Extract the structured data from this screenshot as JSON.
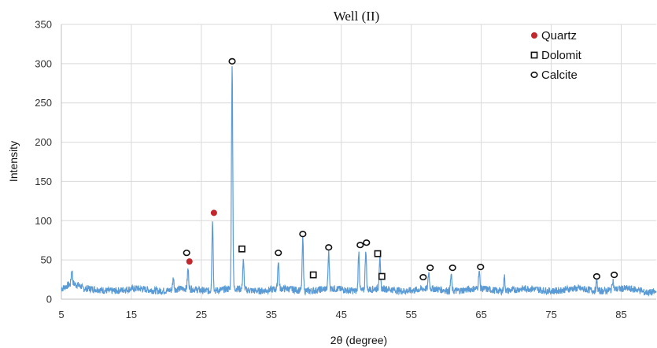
{
  "chart_data": {
    "type": "line",
    "title": "Well (II)",
    "xlabel": "2θ (degree)",
    "ylabel": "Intensity",
    "xlim": [
      5,
      90
    ],
    "ylim": [
      0,
      350
    ],
    "xticks": [
      5,
      15,
      25,
      35,
      45,
      55,
      65,
      75,
      85
    ],
    "yticks": [
      0,
      50,
      100,
      150,
      200,
      250,
      300,
      350
    ],
    "grid": true,
    "legend_position": "top-right",
    "line_color": "#5b9bd5",
    "baseline": 12,
    "peaks": [
      {
        "x": 6.5,
        "y": 30
      },
      {
        "x": 21.0,
        "y": 27
      },
      {
        "x": 23.1,
        "y": 37
      },
      {
        "x": 26.6,
        "y": 102
      },
      {
        "x": 29.4,
        "y": 298
      },
      {
        "x": 31.0,
        "y": 48
      },
      {
        "x": 36.0,
        "y": 48
      },
      {
        "x": 39.5,
        "y": 78
      },
      {
        "x": 43.2,
        "y": 58
      },
      {
        "x": 47.5,
        "y": 62
      },
      {
        "x": 48.5,
        "y": 64
      },
      {
        "x": 50.5,
        "y": 50
      },
      {
        "x": 57.5,
        "y": 33
      },
      {
        "x": 60.7,
        "y": 33
      },
      {
        "x": 64.7,
        "y": 35
      },
      {
        "x": 68.3,
        "y": 30
      },
      {
        "x": 81.5,
        "y": 24
      },
      {
        "x": 83.8,
        "y": 25
      }
    ],
    "series": [
      {
        "name": "Quartz",
        "marker": "filled-circle",
        "color": "#c0282d",
        "points": [
          {
            "x": 23.3,
            "y": 48
          },
          {
            "x": 26.8,
            "y": 110
          }
        ]
      },
      {
        "name": "Dolomit",
        "marker": "open-square",
        "color": "#111111",
        "points": [
          {
            "x": 30.8,
            "y": 64
          },
          {
            "x": 41.0,
            "y": 31
          },
          {
            "x": 50.2,
            "y": 58
          },
          {
            "x": 50.8,
            "y": 29
          }
        ]
      },
      {
        "name": "Calcite",
        "marker": "open-circle",
        "color": "#111111",
        "points": [
          {
            "x": 22.9,
            "y": 59
          },
          {
            "x": 29.4,
            "y": 303
          },
          {
            "x": 36.0,
            "y": 59
          },
          {
            "x": 39.5,
            "y": 83
          },
          {
            "x": 43.2,
            "y": 66
          },
          {
            "x": 47.7,
            "y": 69
          },
          {
            "x": 48.6,
            "y": 72
          },
          {
            "x": 56.7,
            "y": 28
          },
          {
            "x": 57.7,
            "y": 40
          },
          {
            "x": 60.9,
            "y": 40
          },
          {
            "x": 64.9,
            "y": 41
          },
          {
            "x": 81.5,
            "y": 29
          },
          {
            "x": 84.0,
            "y": 31
          }
        ]
      }
    ]
  }
}
